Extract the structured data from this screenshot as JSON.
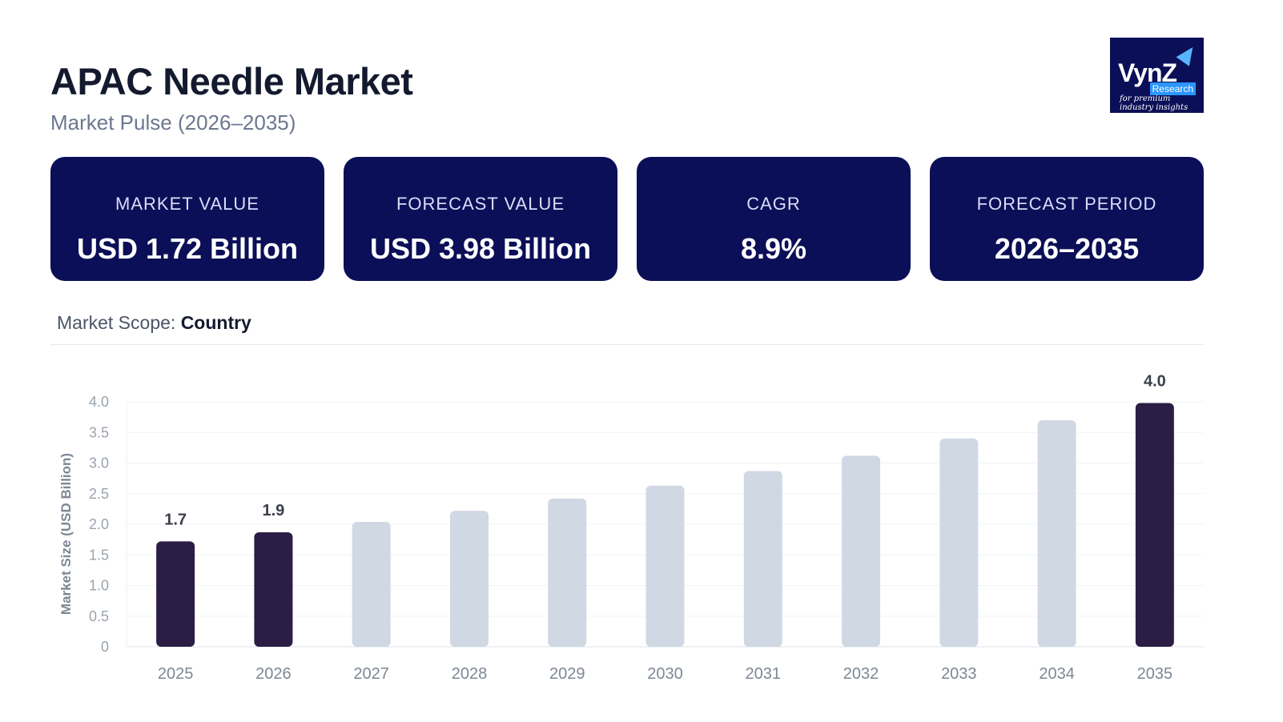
{
  "header": {
    "title": "APAC Needle Market",
    "subtitle": "Market Pulse (2026–2035)"
  },
  "logo": {
    "brand": "VynZ",
    "sub": "Research",
    "tagline": "for premium industry insights",
    "icon": "arrow-icon"
  },
  "cards": [
    {
      "label": "MARKET VALUE",
      "value": "USD 1.72 Billion"
    },
    {
      "label": "FORECAST VALUE",
      "value": "USD 3.98 Billion"
    },
    {
      "label": "CAGR",
      "value": "8.9%"
    },
    {
      "label": "FORECAST PERIOD",
      "value": "2026–2035"
    }
  ],
  "scope": {
    "prefix": "Market Scope:",
    "value": "Country"
  },
  "colors": {
    "accent": "#0b0f57",
    "highlight_bar": "#2b1d45",
    "muted_bar": "#d0d8e3"
  },
  "chart_data": {
    "type": "bar",
    "categories": [
      "2025",
      "2026",
      "2027",
      "2028",
      "2029",
      "2030",
      "2031",
      "2032",
      "2033",
      "2034",
      "2035"
    ],
    "values": [
      1.72,
      1.87,
      2.04,
      2.22,
      2.42,
      2.63,
      2.87,
      3.12,
      3.4,
      3.7,
      3.98
    ],
    "highlighted": [
      "2025",
      "2026",
      "2035"
    ],
    "data_labels": {
      "2025": "1.7",
      "2026": "1.9",
      "2035": "4.0"
    },
    "ylabel": "Market Size (USD Billion)",
    "xlabel": "",
    "ylim": [
      0,
      4.0
    ],
    "yticks": [
      0,
      0.5,
      1.0,
      1.5,
      2.0,
      2.5,
      3.0,
      3.5,
      4.0
    ],
    "ytick_labels": [
      "0",
      "0.5",
      "1.0",
      "1.5",
      "2.0",
      "2.5",
      "3.0",
      "3.5",
      "4.0"
    ],
    "grid": true,
    "legend": "none"
  }
}
